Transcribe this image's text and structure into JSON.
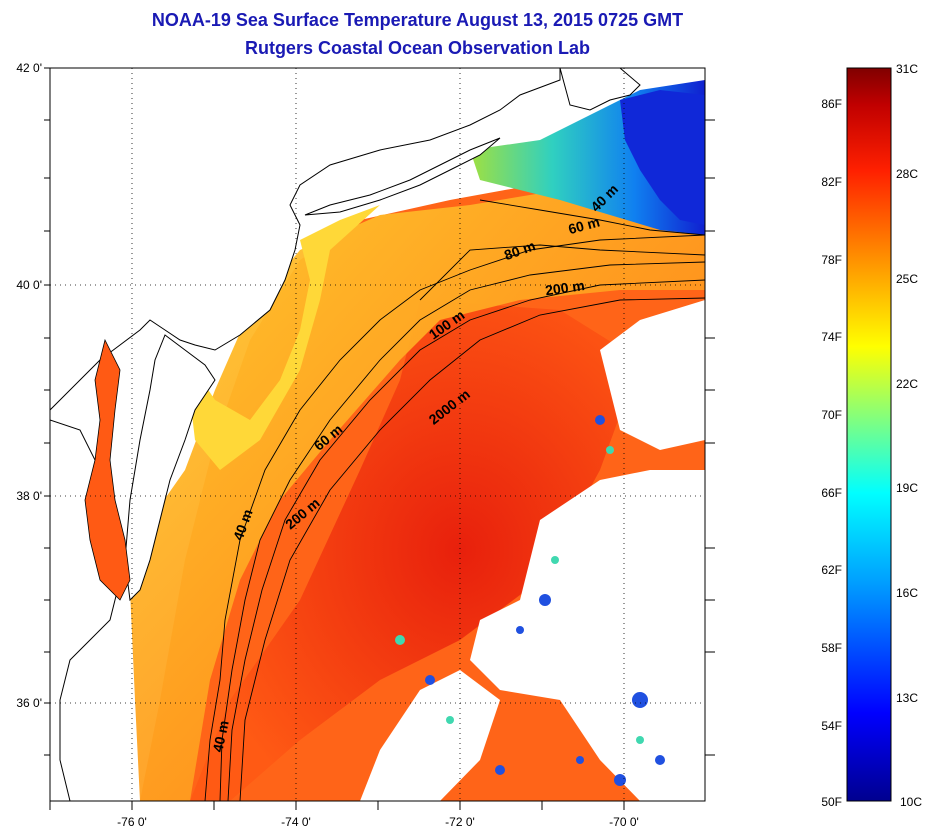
{
  "header": {
    "title": "NOAA-19 Sea Surface Temperature August 13, 2015 0725 GMT",
    "subtitle": "Rutgers Coastal Ocean Observation Lab"
  },
  "map": {
    "lat_ticks": [
      "42 0'",
      "40 0'",
      "38 0'",
      "36 0'"
    ],
    "lon_ticks": [
      "-76 0'",
      "-74 0'",
      "-72 0'",
      "-70 0'"
    ],
    "contour_labels": [
      "40 m",
      "60 m",
      "80 m",
      "200 m",
      "100 m",
      "2000 m",
      "60 m",
      "200 m",
      "40 m",
      "40 m"
    ],
    "colors": {
      "land": "#ffffff",
      "coastline": "#000000",
      "grid": "#000000",
      "warm_offshore": "#ff5a14",
      "gulf_stream": "#e82810",
      "shelf": "#ffa020",
      "nearshore": "#ffd030",
      "cold_north": "#1030e0",
      "cool": "#30d0c0"
    }
  },
  "colorbar": {
    "celsius_labels": [
      "31C",
      "28C",
      "25C",
      "22C",
      "19C",
      "16C",
      "13C",
      "10C"
    ],
    "fahrenheit_labels": [
      "86F",
      "82F",
      "78F",
      "74F",
      "70F",
      "66F",
      "62F",
      "58F",
      "54F",
      "50F"
    ],
    "range_c": [
      10,
      31
    ],
    "colormap": [
      "#00008f",
      "#0000ff",
      "#00a0ff",
      "#00ffff",
      "#80ff80",
      "#ffff00",
      "#ff9000",
      "#ff2000",
      "#c00000",
      "#800000"
    ]
  }
}
